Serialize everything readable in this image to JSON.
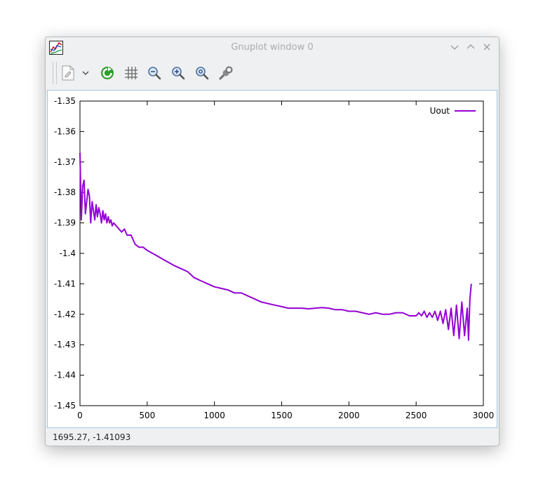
{
  "window": {
    "title": "Gnuplot window 0"
  },
  "toolbar": {
    "buttons": [
      {
        "name": "export",
        "icon": "document-export-icon"
      },
      {
        "name": "export-menu",
        "icon": "chevron-down-icon"
      },
      {
        "name": "replot",
        "icon": "refresh-icon"
      },
      {
        "name": "grid",
        "icon": "grid-icon"
      },
      {
        "name": "zoom-previous",
        "icon": "zoom-out-icon"
      },
      {
        "name": "zoom-next",
        "icon": "zoom-in-icon"
      },
      {
        "name": "autoscale",
        "icon": "zoom-reset-icon"
      },
      {
        "name": "settings",
        "icon": "wrench-icon"
      }
    ]
  },
  "status": {
    "coordinates": "1695.27, -1.41093"
  },
  "colors": {
    "series": "#9400d3",
    "accent_border": "#9fc6e3"
  },
  "chart_data": {
    "type": "line",
    "title": "",
    "xlabel": "",
    "ylabel": "",
    "xlim": [
      0,
      3000
    ],
    "ylim": [
      -1.45,
      -1.35
    ],
    "xticks": [
      0,
      500,
      1000,
      1500,
      2000,
      2500,
      3000
    ],
    "xtick_labels": [
      "0",
      "500",
      "1000",
      "1500",
      "2000",
      "2500",
      "3000"
    ],
    "yticks": [
      -1.35,
      -1.36,
      -1.37,
      -1.38,
      -1.39,
      -1.4,
      -1.41,
      -1.42,
      -1.43,
      -1.44,
      -1.45
    ],
    "ytick_labels": [
      "-1.35",
      "-1.36",
      "-1.37",
      "-1.38",
      "-1.39",
      "-1.4",
      "-1.41",
      "-1.42",
      "-1.43",
      "-1.44",
      "-1.45"
    ],
    "grid": false,
    "legend_position": "top-right",
    "series": [
      {
        "name": "Uout",
        "color": "#9400d3",
        "x": [
          0,
          10,
          20,
          30,
          40,
          50,
          60,
          70,
          80,
          90,
          100,
          110,
          120,
          130,
          140,
          150,
          160,
          170,
          180,
          190,
          200,
          210,
          220,
          230,
          240,
          250,
          270,
          290,
          310,
          330,
          350,
          380,
          410,
          440,
          470,
          500,
          540,
          580,
          620,
          660,
          700,
          750,
          800,
          850,
          900,
          950,
          1000,
          1050,
          1100,
          1150,
          1200,
          1250,
          1300,
          1350,
          1400,
          1450,
          1500,
          1550,
          1600,
          1650,
          1700,
          1750,
          1800,
          1850,
          1900,
          1950,
          2000,
          2050,
          2100,
          2150,
          2200,
          2250,
          2300,
          2350,
          2400,
          2450,
          2500,
          2520,
          2540,
          2560,
          2580,
          2600,
          2620,
          2640,
          2660,
          2680,
          2700,
          2720,
          2740,
          2760,
          2780,
          2800,
          2820,
          2840,
          2860,
          2880,
          2890,
          2900,
          2910
        ],
        "y": [
          -1.367,
          -1.389,
          -1.378,
          -1.376,
          -1.387,
          -1.383,
          -1.379,
          -1.381,
          -1.39,
          -1.383,
          -1.386,
          -1.389,
          -1.384,
          -1.388,
          -1.385,
          -1.387,
          -1.39,
          -1.386,
          -1.389,
          -1.387,
          -1.39,
          -1.388,
          -1.39,
          -1.389,
          -1.391,
          -1.39,
          -1.391,
          -1.392,
          -1.393,
          -1.392,
          -1.394,
          -1.394,
          -1.397,
          -1.398,
          -1.398,
          -1.399,
          -1.4,
          -1.401,
          -1.402,
          -1.403,
          -1.404,
          -1.405,
          -1.406,
          -1.408,
          -1.409,
          -1.41,
          -1.411,
          -1.4115,
          -1.412,
          -1.413,
          -1.413,
          -1.414,
          -1.415,
          -1.416,
          -1.4165,
          -1.417,
          -1.4175,
          -1.418,
          -1.418,
          -1.418,
          -1.4182,
          -1.418,
          -1.4178,
          -1.418,
          -1.4185,
          -1.4185,
          -1.419,
          -1.419,
          -1.4195,
          -1.42,
          -1.4195,
          -1.42,
          -1.42,
          -1.4195,
          -1.4195,
          -1.4205,
          -1.4205,
          -1.4195,
          -1.4205,
          -1.419,
          -1.421,
          -1.4195,
          -1.421,
          -1.419,
          -1.422,
          -1.419,
          -1.423,
          -1.4185,
          -1.425,
          -1.418,
          -1.427,
          -1.417,
          -1.428,
          -1.416,
          -1.427,
          -1.418,
          -1.4285,
          -1.415,
          -1.41
        ]
      }
    ]
  }
}
